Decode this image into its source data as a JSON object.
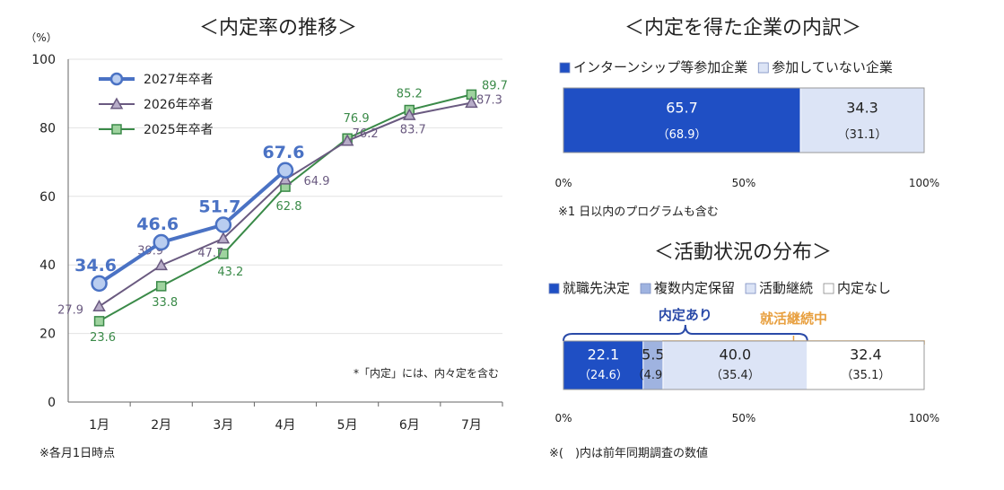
{
  "chart_data": [
    {
      "type": "line",
      "title": "＜内定率の推移＞",
      "unit_label": "（%）",
      "categories": [
        "1月",
        "2月",
        "3月",
        "4月",
        "5月",
        "6月",
        "7月"
      ],
      "ylim": [
        0,
        100
      ],
      "yticks": [
        "0",
        "20",
        "40",
        "60",
        "80",
        "100"
      ],
      "legend_position": "top-left",
      "series": [
        {
          "name": "2027年卒者",
          "color": "#4a72c4",
          "marker": "circle",
          "values": [
            34.6,
            46.6,
            51.7,
            67.6,
            null,
            null,
            null
          ],
          "labels": [
            "34.6",
            "46.6",
            "51.7",
            "67.6",
            null,
            null,
            null
          ]
        },
        {
          "name": "2026年卒者",
          "color": "#6a5a80",
          "marker": "triangle",
          "values": [
            27.9,
            39.9,
            47.7,
            64.9,
            76.2,
            83.7,
            87.3
          ],
          "labels": [
            "27.9",
            "39.9",
            "47.7",
            "64.9",
            "76.2",
            "83.7",
            "87.3"
          ]
        },
        {
          "name": "2025年卒者",
          "color": "#3a8a48",
          "marker": "square",
          "values": [
            23.6,
            33.8,
            43.2,
            62.8,
            76.9,
            85.2,
            89.7
          ],
          "labels": [
            "23.6",
            "33.8",
            "43.2",
            "62.8",
            "76.9",
            "85.2",
            "89.7"
          ]
        }
      ],
      "annotation": "*「内定」には、内々定を含む",
      "footnote": "※各月1日時点"
    },
    {
      "type": "bar",
      "orientation": "horizontal-stacked",
      "title": "＜内定を得た企業の内訳＞",
      "legend": [
        {
          "name": "インターンシップ等参加企業",
          "color": "#1f4fc4"
        },
        {
          "name": "参加していない企業",
          "color": "#dce4f6"
        }
      ],
      "segments": [
        {
          "value": 65.7,
          "label": "65.7",
          "prev_label": "（68.9）",
          "color": "#1f4fc4",
          "text_color": "#ffffff"
        },
        {
          "value": 34.3,
          "label": "34.3",
          "prev_label": "（31.1）",
          "color": "#dce4f6",
          "text_color": "#222222"
        }
      ],
      "xticks": [
        "0%",
        "50%",
        "100%"
      ],
      "footnote": "※1 日以内のプログラムも含む"
    },
    {
      "type": "bar",
      "orientation": "horizontal-stacked",
      "title": "＜活動状況の分布＞",
      "legend": [
        {
          "name": "就職先決定",
          "color": "#1f4fc4"
        },
        {
          "name": "複数内定保留",
          "color": "#9fb3e0"
        },
        {
          "name": "活動継続",
          "color": "#dce4f6"
        },
        {
          "name": "内定なし",
          "color": "#ffffff"
        }
      ],
      "segments": [
        {
          "value": 22.1,
          "label": "22.1",
          "prev_label": "（24.6）",
          "color": "#1f4fc4",
          "text_color": "#ffffff"
        },
        {
          "value": 5.5,
          "label": "5.5",
          "prev_label": "（4.9）",
          "color": "#9fb3e0",
          "text_color": "#222222"
        },
        {
          "value": 40.0,
          "label": "40.0",
          "prev_label": "（35.4）",
          "color": "#dce4f6",
          "text_color": "#222222"
        },
        {
          "value": 32.4,
          "label": "32.4",
          "prev_label": "（35.1）",
          "color": "#ffffff",
          "text_color": "#222222"
        }
      ],
      "brackets": [
        {
          "label": "内定あり",
          "color": "#2a4aa8",
          "from_value": 0,
          "to_value": 67.6
        },
        {
          "label": "就活継続中",
          "color": "#e8a040",
          "from_value": 27.6,
          "to_value": 100
        }
      ],
      "xticks": [
        "0%",
        "50%",
        "100%"
      ],
      "footnote": "※(　)内は前年同期調査の数値"
    }
  ]
}
